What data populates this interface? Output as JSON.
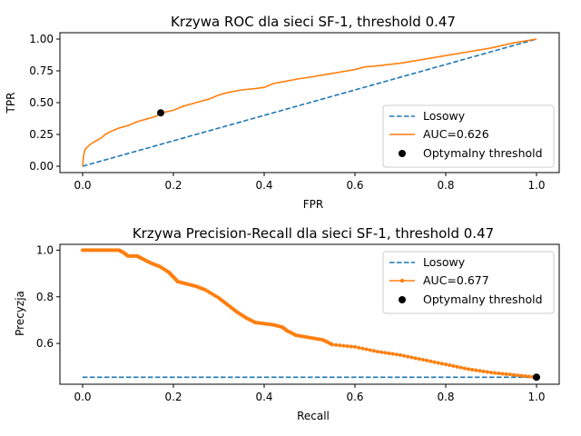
{
  "chart_data": [
    {
      "type": "line",
      "title": "Krzywa ROC dla sieci SF-1, threshold  0.47",
      "xlabel": "FPR",
      "ylabel": "TPR",
      "xlim": [
        -0.05,
        1.05
      ],
      "ylim": [
        -0.05,
        1.05
      ],
      "xticks": [
        "0.0",
        "0.2",
        "0.4",
        "0.6",
        "0.8",
        "1.0"
      ],
      "yticks": [
        "0.00",
        "0.25",
        "0.50",
        "0.75",
        "1.00"
      ],
      "legend_position": "lower-right",
      "series": [
        {
          "name": "Losowy",
          "style": "dashed",
          "color": "#1f77b4",
          "x": [
            0,
            1
          ],
          "y": [
            0,
            1
          ]
        },
        {
          "name": "AUC=0.626",
          "style": "solid",
          "color": "#ff7f0e",
          "x": [
            0,
            0.002,
            0.005,
            0.01,
            0.02,
            0.03,
            0.04,
            0.05,
            0.06,
            0.08,
            0.1,
            0.12,
            0.14,
            0.16,
            0.175,
            0.2,
            0.22,
            0.25,
            0.28,
            0.3,
            0.32,
            0.35,
            0.38,
            0.4,
            0.42,
            0.45,
            0.48,
            0.5,
            0.55,
            0.6,
            0.62,
            0.65,
            0.7,
            0.75,
            0.8,
            0.85,
            0.9,
            0.95,
            1.0
          ],
          "y": [
            0,
            0.08,
            0.13,
            0.15,
            0.18,
            0.2,
            0.22,
            0.25,
            0.27,
            0.3,
            0.32,
            0.35,
            0.37,
            0.39,
            0.42,
            0.44,
            0.47,
            0.5,
            0.53,
            0.56,
            0.58,
            0.6,
            0.61,
            0.62,
            0.65,
            0.67,
            0.69,
            0.7,
            0.73,
            0.76,
            0.78,
            0.79,
            0.81,
            0.84,
            0.87,
            0.9,
            0.93,
            0.97,
            1.0
          ]
        },
        {
          "name": "Optymalny threshold",
          "style": "marker",
          "color": "#000000",
          "x": [
            0.172
          ],
          "y": [
            0.42
          ]
        }
      ]
    },
    {
      "type": "line",
      "title": "Krzywa Precision-Recall dla sieci SF-1, threshold  0.47",
      "xlabel": "Recall",
      "ylabel": "Precyzja",
      "xlim": [
        -0.05,
        1.05
      ],
      "ylim": [
        0.425,
        1.025
      ],
      "xticks": [
        "0.0",
        "0.2",
        "0.4",
        "0.6",
        "0.8",
        "1.0"
      ],
      "yticks": [
        "0.6",
        "0.8",
        "1.0"
      ],
      "legend_position": "upper-right",
      "series": [
        {
          "name": "Losowy",
          "style": "dashed",
          "color": "#1f77b4",
          "x": [
            0,
            1
          ],
          "y": [
            0.455,
            0.455
          ]
        },
        {
          "name": "AUC=0.677",
          "style": "solid-dots",
          "color": "#ff7f0e",
          "x": [
            0,
            0.02,
            0.04,
            0.06,
            0.08,
            0.09,
            0.1,
            0.12,
            0.13,
            0.15,
            0.17,
            0.19,
            0.2,
            0.21,
            0.23,
            0.25,
            0.27,
            0.3,
            0.32,
            0.34,
            0.36,
            0.38,
            0.4,
            0.42,
            0.44,
            0.45,
            0.47,
            0.5,
            0.53,
            0.55,
            0.6,
            0.65,
            0.7,
            0.75,
            0.8,
            0.85,
            0.9,
            0.95,
            1.0
          ],
          "y": [
            1.0,
            1.0,
            1.0,
            1.0,
            1.0,
            0.99,
            0.975,
            0.975,
            0.965,
            0.945,
            0.93,
            0.905,
            0.885,
            0.865,
            0.855,
            0.845,
            0.83,
            0.795,
            0.765,
            0.735,
            0.71,
            0.69,
            0.685,
            0.68,
            0.67,
            0.655,
            0.635,
            0.625,
            0.615,
            0.595,
            0.585,
            0.565,
            0.55,
            0.53,
            0.51,
            0.49,
            0.475,
            0.465,
            0.455
          ]
        },
        {
          "name": "Optymalny threshold",
          "style": "marker",
          "color": "#000000",
          "x": [
            1.0
          ],
          "y": [
            0.455
          ]
        }
      ]
    }
  ]
}
